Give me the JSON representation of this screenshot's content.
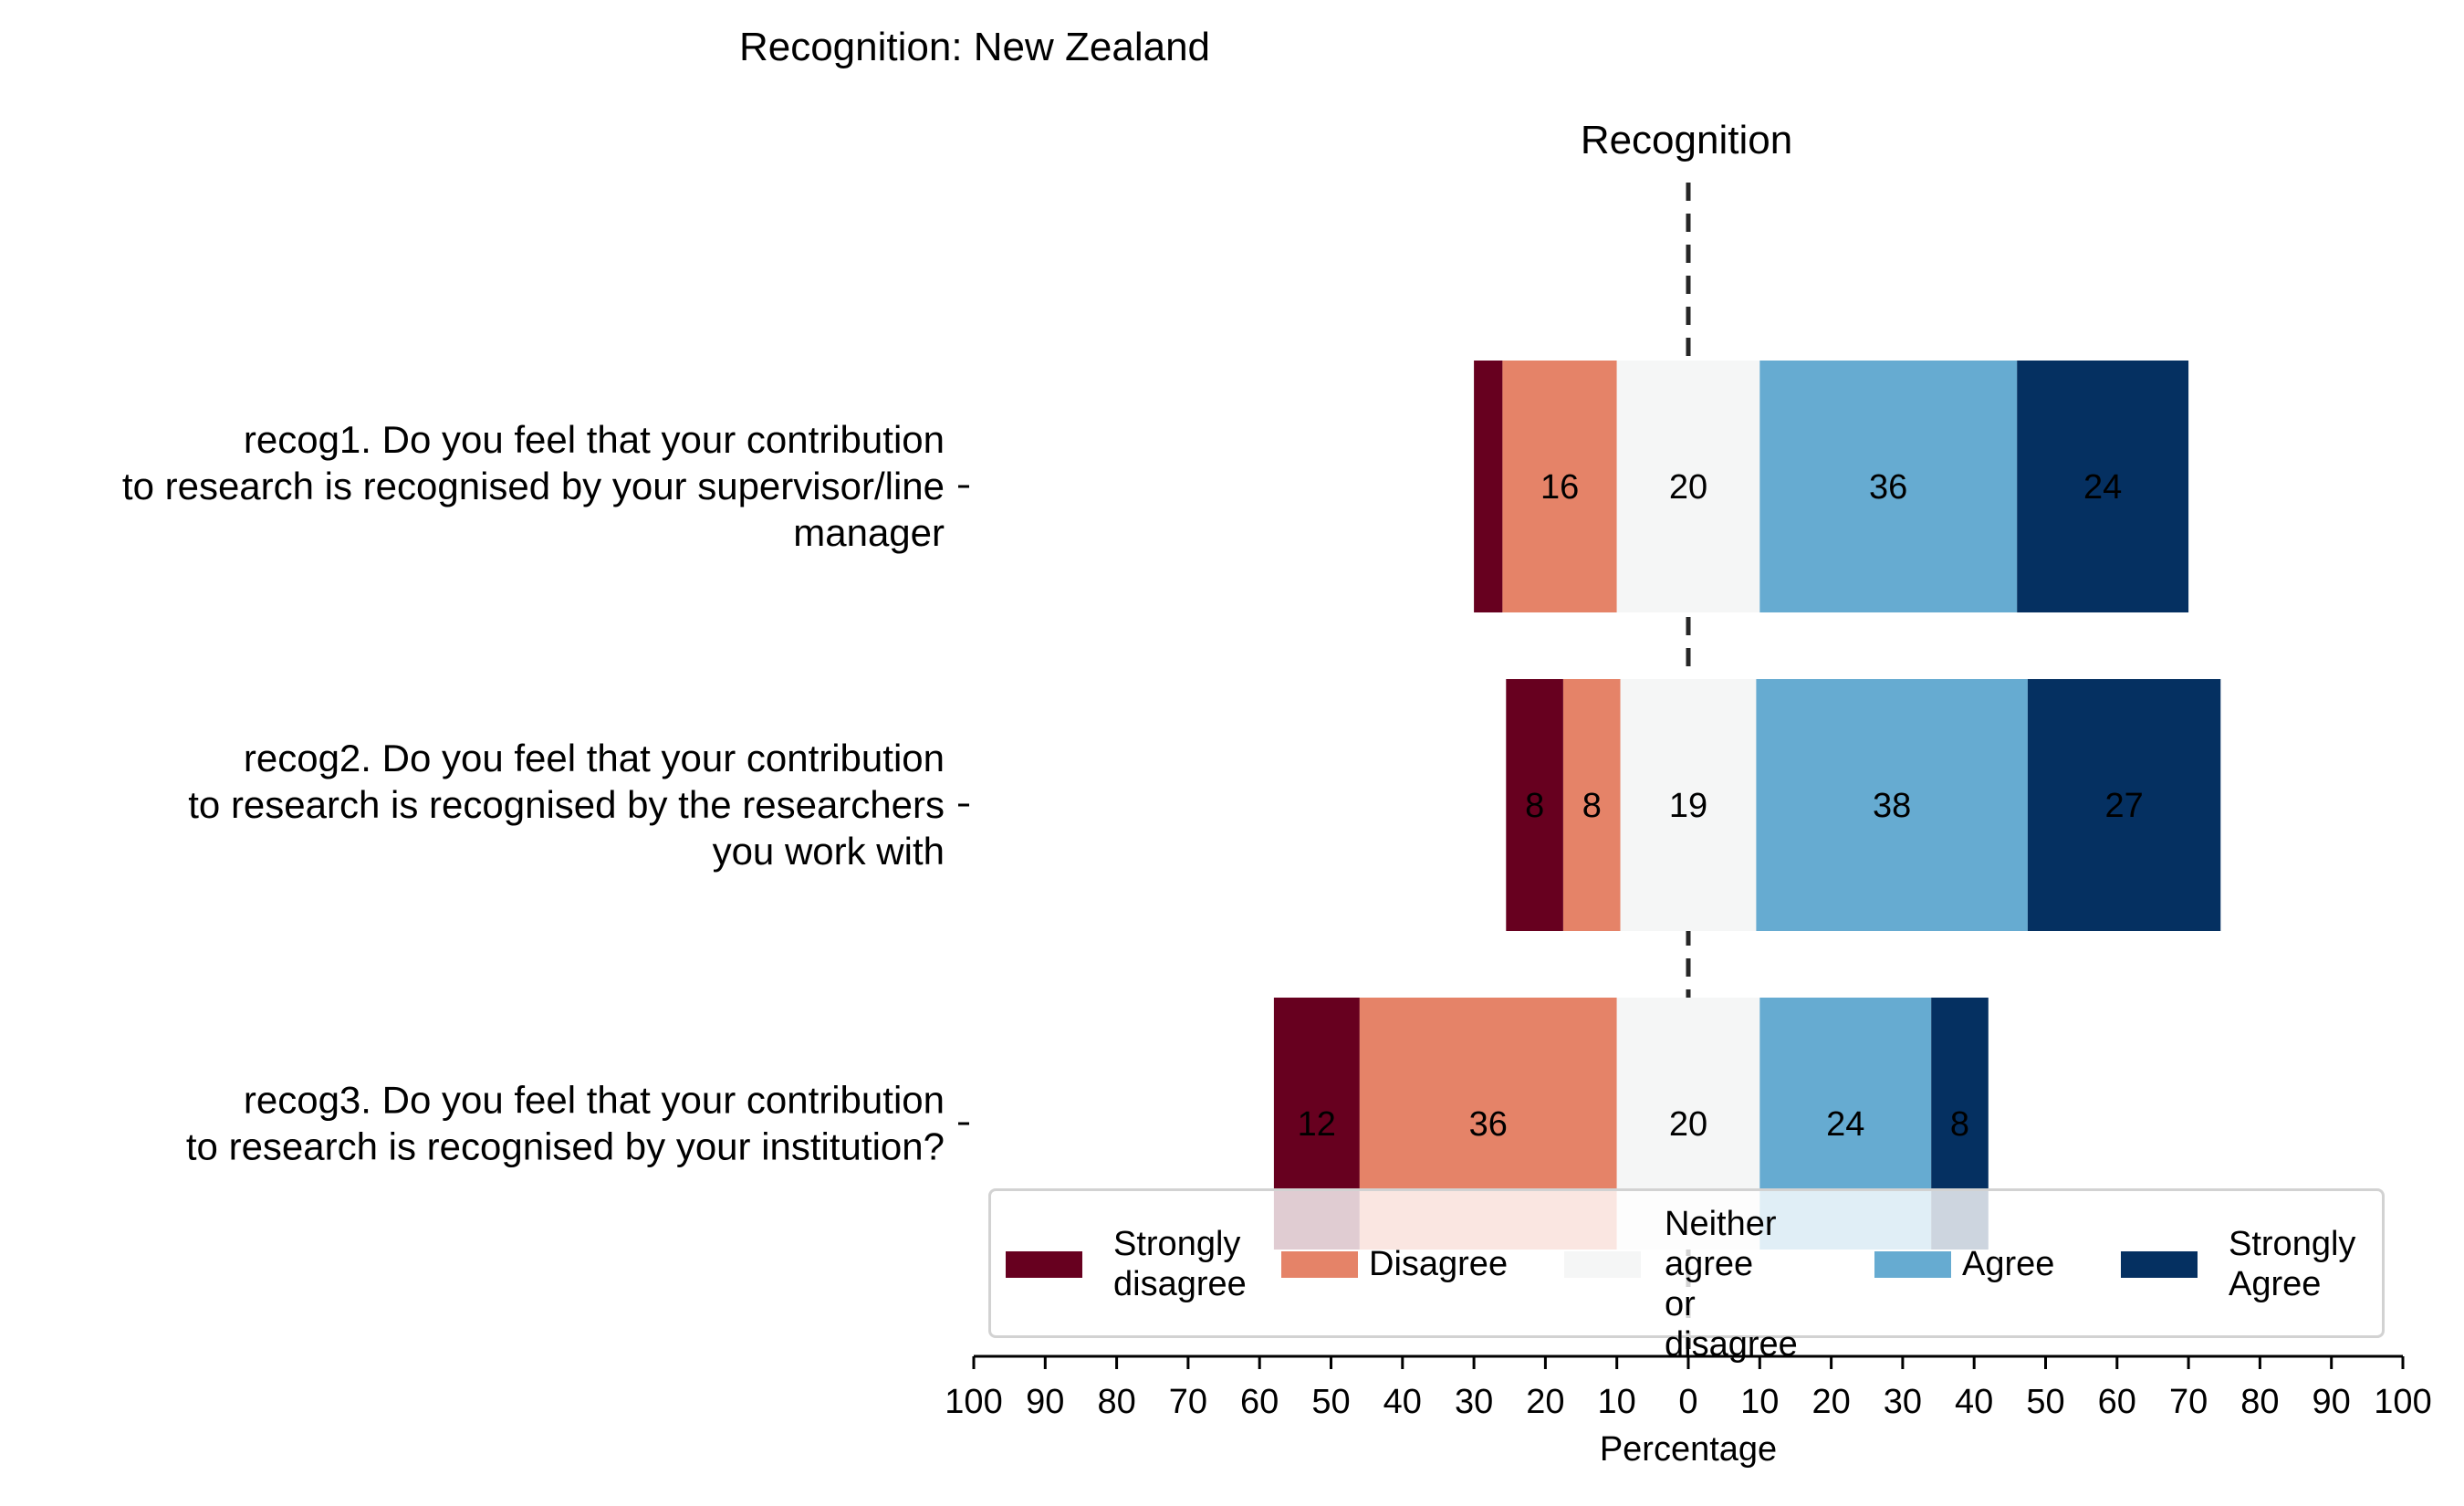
{
  "chart_data": {
    "type": "bar",
    "orientation": "horizontal-diverging",
    "title": "Recognition: New Zealand",
    "subtitle": "Recognition",
    "xlabel": "Percentage",
    "xlim": [
      -100,
      100
    ],
    "x_tick_labels": [
      "100",
      "90",
      "80",
      "70",
      "60",
      "50",
      "40",
      "30",
      "20",
      "10",
      "0",
      "10",
      "20",
      "30",
      "40",
      "50",
      "60",
      "70",
      "80",
      "90",
      "100"
    ],
    "categories": [
      "recog1. Do you feel that your contribution\nto research is recognised by your supervisor/line\nmanager",
      "recog2. Do you feel that your contribution\nto research is recognised by the researchers\nyou work with",
      "recog3. Do you feel that your contribution\nto research is recognised by your institution?"
    ],
    "series": [
      {
        "name": "Strongly\ndisagree",
        "color": "#67001f",
        "values": [
          4,
          8,
          12
        ],
        "labels": [
          "",
          "8",
          "12"
        ]
      },
      {
        "name": "Disagree",
        "color": "#e58368",
        "values": [
          16,
          8,
          36
        ],
        "labels": [
          "16",
          "8",
          "36"
        ]
      },
      {
        "name": "Neither\nagree\nor disagree",
        "color": "#f5f6f6",
        "values": [
          20,
          19,
          20
        ],
        "labels": [
          "20",
          "19",
          "20"
        ]
      },
      {
        "name": "Agree",
        "color": "#66abd1",
        "values": [
          36,
          38,
          24
        ],
        "labels": [
          "36",
          "38",
          "24"
        ]
      },
      {
        "name": "Strongly\nAgree",
        "color": "#053061",
        "values": [
          24,
          27,
          8
        ],
        "labels": [
          "24",
          "27",
          "8"
        ]
      }
    ],
    "legend_position": "lower-right",
    "grid": false
  }
}
